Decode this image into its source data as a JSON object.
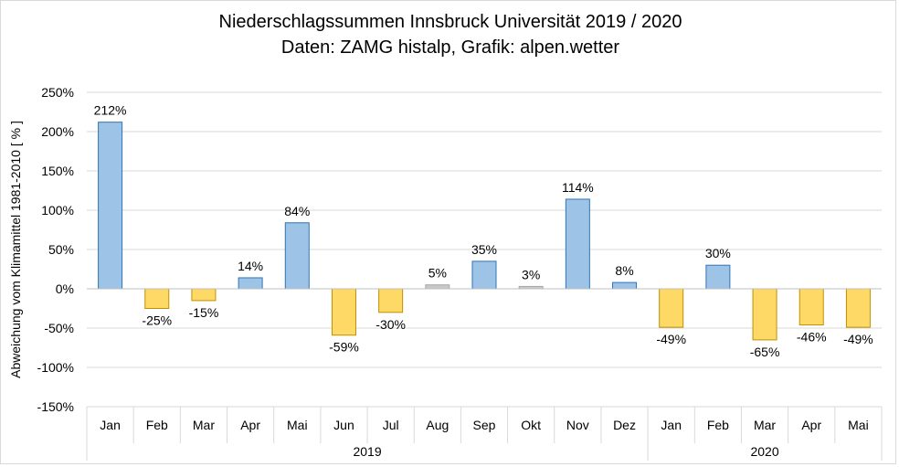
{
  "title_line_1": "Niederschlagssummen Innsbruck Universität 2019 / 2020",
  "title_line_2": "Daten: ZAMG histalp, Grafik: alpen.wetter",
  "chart_data": {
    "type": "bar",
    "title": "Niederschlagssummen Innsbruck Universität 2019 / 2020",
    "subtitle": "Daten: ZAMG histalp, Grafik: alpen.wetter",
    "ylabel": "Abweichung vom Klimamittel 1981-2010 [ % ]",
    "xlabel": "",
    "ylim": [
      -150,
      250
    ],
    "yticks": [
      250,
      200,
      150,
      100,
      50,
      0,
      -50,
      -100,
      -150
    ],
    "y_tick_labels": [
      "250%",
      "200%",
      "150%",
      "100%",
      "50%",
      "0%",
      "-50%",
      "-100%",
      "-150%"
    ],
    "grid": true,
    "legend": "none",
    "categories": [
      "Jan",
      "Feb",
      "Mar",
      "Apr",
      "Mai",
      "Jun",
      "Jul",
      "Aug",
      "Sep",
      "Okt",
      "Nov",
      "Dez",
      "Jan",
      "Feb",
      "Mar",
      "Apr",
      "Mai"
    ],
    "groups": [
      {
        "label": "2019",
        "count": 12
      },
      {
        "label": "2020",
        "count": 5
      }
    ],
    "values": [
      212,
      -25,
      -15,
      14,
      84,
      -59,
      -30,
      5,
      35,
      3,
      114,
      8,
      -49,
      30,
      -65,
      -46,
      -49
    ],
    "value_labels": [
      "212%",
      "-25%",
      "-15%",
      "14%",
      "84%",
      "-59%",
      "-30%",
      "5%",
      "35%",
      "3%",
      "114%",
      "8%",
      "-49%",
      "30%",
      "-65%",
      "-46%",
      "-49%"
    ],
    "colors": {
      "wet_fill": "#9dc3e6",
      "wet_stroke": "#2e75b6",
      "dry_fill": "#ffd966",
      "dry_stroke": "#bf9000",
      "normal_fill": "#c9c9c9",
      "normal_stroke": "#a6a6a6",
      "grid": "#d9d9d9"
    }
  }
}
